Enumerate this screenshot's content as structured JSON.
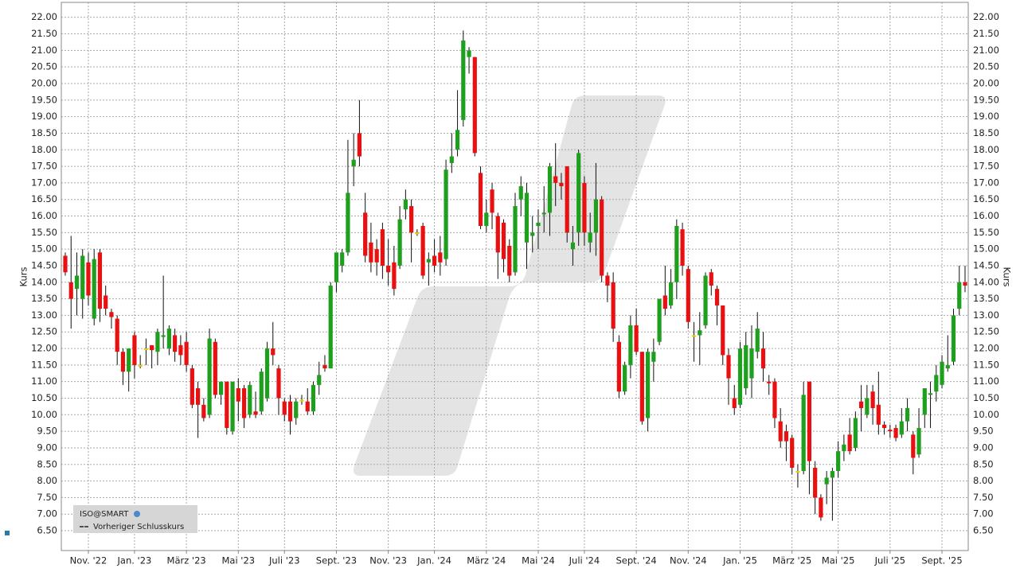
{
  "chart_data": {
    "type": "candlestick",
    "y_label": "Kurs",
    "instrument": "ISO@SMART",
    "legend_line": "Vorheriger Schlusskurs",
    "up_color": "#1ea01e",
    "down_color": "#e81010",
    "neutral_color": "#e8d000",
    "grid": true,
    "ylim": [
      5.9,
      22.45
    ],
    "yticks": [
      {
        "value": 6.5,
        "label": "6.50"
      },
      {
        "value": 7,
        "label": "7.00"
      },
      {
        "value": 7.5,
        "label": "7.50"
      },
      {
        "value": 8,
        "label": "8.00"
      },
      {
        "value": 8.5,
        "label": "8.50"
      },
      {
        "value": 9,
        "label": "9.00"
      },
      {
        "value": 9.5,
        "label": "9.50"
      },
      {
        "value": 10,
        "label": "10.00"
      },
      {
        "value": 10.5,
        "label": "10.50"
      },
      {
        "value": 11,
        "label": "11.00"
      },
      {
        "value": 11.5,
        "label": "11.50"
      },
      {
        "value": 12,
        "label": "12.00"
      },
      {
        "value": 12.5,
        "label": "12.50"
      },
      {
        "value": 13,
        "label": "13.00"
      },
      {
        "value": 13.5,
        "label": "13.50"
      },
      {
        "value": 14,
        "label": "14.00"
      },
      {
        "value": 14.5,
        "label": "14.50"
      },
      {
        "value": 15,
        "label": "15.00"
      },
      {
        "value": 15.5,
        "label": "15.50"
      },
      {
        "value": 16,
        "label": "16.00"
      },
      {
        "value": 16.5,
        "label": "16.50"
      },
      {
        "value": 17,
        "label": "17.00"
      },
      {
        "value": 17.5,
        "label": "17.50"
      },
      {
        "value": 18,
        "label": "18.00"
      },
      {
        "value": 18.5,
        "label": "18.50"
      },
      {
        "value": 19,
        "label": "19.00"
      },
      {
        "value": 19.5,
        "label": "19.50"
      },
      {
        "value": 20,
        "label": "20.00"
      },
      {
        "value": 20.5,
        "label": "20.50"
      },
      {
        "value": 21,
        "label": "21.00"
      },
      {
        "value": 21.5,
        "label": "21.50"
      },
      {
        "value": 22,
        "label": "22.00"
      }
    ],
    "categories": [
      null,
      null,
      null,
      null,
      "Nov. '22",
      null,
      null,
      null,
      null,
      null,
      null,
      null,
      "Jan. '23",
      null,
      null,
      null,
      null,
      null,
      null,
      null,
      null,
      "März '23",
      null,
      null,
      null,
      null,
      null,
      null,
      null,
      null,
      "Mai '23",
      null,
      null,
      null,
      null,
      null,
      null,
      null,
      "Juli '23",
      null,
      null,
      null,
      null,
      null,
      null,
      null,
      null,
      "Sept. '23",
      null,
      null,
      null,
      null,
      null,
      null,
      null,
      null,
      "Nov. '23",
      null,
      null,
      null,
      null,
      null,
      null,
      null,
      "Jan. '24",
      null,
      null,
      null,
      null,
      null,
      null,
      null,
      null,
      "März '24",
      null,
      null,
      null,
      null,
      null,
      null,
      null,
      null,
      "Mai '24",
      null,
      null,
      null,
      null,
      null,
      null,
      null,
      "Juli '24",
      null,
      null,
      null,
      null,
      null,
      null,
      null,
      null,
      "Sept. '24",
      null,
      null,
      null,
      null,
      null,
      null,
      null,
      null,
      "Nov. '24",
      null,
      null,
      null,
      null,
      null,
      null,
      null,
      null,
      "Jan. '25",
      null,
      null,
      null,
      null,
      null,
      null,
      null,
      null,
      "März '25",
      null,
      null,
      null,
      null,
      null,
      null,
      null,
      "Mai '25",
      null,
      null,
      null,
      null,
      null,
      null,
      null,
      null,
      "Juli '25",
      null,
      null,
      null,
      null,
      null,
      null,
      null,
      null,
      "Sept. '25",
      null,
      null,
      null,
      null
    ],
    "open": [
      14.8,
      14.0,
      13.8,
      13.5,
      14.6,
      12.9,
      14.9,
      13.6,
      13.1,
      12.9,
      11.9,
      11.3,
      12.4,
      11.5,
      12.0,
      12.1,
      11.9,
      12.35,
      12.0,
      12.4,
      12.1,
      12.2,
      11.4,
      10.8,
      10.3,
      10.0,
      12.2,
      10.6,
      11.0,
      9.5,
      10.8,
      10.8,
      10.0,
      10.1,
      10.1,
      10.5,
      12.0,
      11.4,
      10.4,
      10.4,
      9.9,
      10.45,
      10.4,
      10.1,
      10.9,
      11.5,
      11.4,
      14.0,
      14.5,
      14.9,
      17.5,
      18.5,
      16.1,
      15.2,
      15.0,
      15.6,
      14.5,
      14.6,
      14.5,
      16.2,
      16.3,
      15.5,
      15.7,
      14.6,
      14.8,
      14.9,
      14.7,
      17.6,
      18.0,
      18.9,
      20.8,
      20.8,
      17.3,
      15.7,
      16.8,
      16.0,
      15.8,
      15.1,
      14.3,
      16.5,
      15.2,
      15.4,
      15.7,
      16.05,
      16.1,
      17.2,
      17.0,
      17.5,
      15.0,
      15.5,
      17.0,
      15.2,
      15.5,
      16.5,
      14.2,
      14.0,
      12.2,
      10.7,
      11.5,
      12.7,
      11.9,
      9.9,
      11.6,
      12.2,
      13.6,
      13.3,
      14.0,
      15.6,
      14.4,
      12.4,
      12.4,
      12.7,
      14.3,
      13.8,
      13.3,
      11.8,
      10.5,
      10.3,
      10.8,
      11.1,
      11.9,
      12.0,
      11.0,
      11.0,
      9.8,
      9.5,
      9.3,
      8.3,
      8.3,
      11.0,
      8.4,
      7.5,
      7.9,
      8.1,
      8.3,
      8.9,
      9.4,
      9.0,
      10.4,
      10.0,
      10.7,
      10.3,
      9.7,
      9.55,
      9.6,
      9.4,
      9.8,
      9.4,
      8.8,
      10.0,
      10.6,
      10.7,
      10.9,
      11.4,
      11.6,
      13.2,
      14.0
    ],
    "high": [
      14.9,
      15.4,
      14.9,
      15.0,
      14.9,
      15.0,
      15.0,
      13.9,
      13.2,
      13.0,
      12.0,
      12.0,
      12.5,
      11.8,
      12.3,
      12.1,
      12.6,
      14.2,
      12.7,
      12.6,
      12.4,
      12.5,
      11.5,
      11.0,
      10.5,
      12.6,
      12.3,
      11.0,
      11.0,
      11.0,
      11.1,
      10.9,
      11.0,
      10.7,
      11.4,
      12.2,
      12.8,
      11.5,
      10.5,
      10.6,
      10.5,
      10.6,
      10.8,
      11.0,
      11.6,
      11.8,
      14.0,
      14.9,
      15.0,
      18.3,
      18.5,
      19.5,
      16.7,
      15.8,
      15.3,
      15.8,
      15.3,
      15.1,
      16.3,
      16.8,
      16.5,
      15.6,
      15.8,
      14.9,
      15.3,
      15.4,
      17.7,
      18.5,
      19.8,
      21.6,
      21.1,
      20.8,
      17.5,
      16.5,
      17.0,
      16.1,
      15.9,
      15.3,
      16.7,
      17.2,
      17.0,
      16.0,
      16.2,
      16.9,
      17.6,
      18.2,
      17.3,
      17.5,
      15.7,
      18.0,
      17.2,
      16.1,
      17.6,
      16.6,
      14.3,
      14.3,
      12.4,
      11.6,
      13.0,
      13.2,
      11.9,
      12.0,
      12.3,
      13.5,
      14.5,
      14.4,
      15.9,
      15.8,
      14.5,
      12.8,
      13.1,
      14.3,
      14.4,
      13.9,
      13.3,
      12.0,
      10.9,
      12.2,
      12.5,
      12.7,
      13.1,
      12.5,
      11.2,
      11.1,
      10.2,
      9.7,
      9.4,
      8.5,
      11.0,
      11.0,
      8.6,
      7.6,
      8.3,
      8.4,
      9.2,
      9.4,
      9.9,
      10.1,
      10.9,
      10.9,
      10.9,
      11.3,
      9.8,
      9.7,
      9.7,
      10.2,
      10.5,
      9.5,
      10.2,
      10.8,
      11.0,
      11.5,
      11.8,
      12.4,
      13.2,
      14.5,
      14.5
    ],
    "low": [
      14.2,
      12.6,
      13.0,
      12.9,
      13.3,
      12.7,
      12.8,
      13.0,
      12.6,
      11.5,
      10.9,
      10.7,
      11.1,
      11.4,
      11.5,
      11.4,
      11.5,
      12.0,
      11.8,
      11.6,
      11.5,
      11.3,
      10.2,
      9.3,
      9.8,
      9.9,
      10.5,
      10.3,
      9.4,
      9.4,
      9.8,
      9.6,
      9.9,
      9.9,
      10.0,
      10.4,
      11.5,
      10.0,
      9.8,
      9.4,
      9.7,
      10.3,
      10.0,
      10.0,
      10.6,
      11.3,
      11.4,
      13.7,
      14.3,
      14.8,
      16.9,
      17.5,
      14.6,
      14.3,
      14.2,
      14.1,
      13.9,
      13.6,
      14.4,
      15.9,
      14.6,
      15.4,
      14.1,
      13.9,
      14.3,
      14.2,
      14.5,
      17.3,
      17.8,
      18.7,
      20.3,
      17.8,
      15.6,
      15.5,
      15.6,
      14.1,
      14.3,
      14.0,
      14.2,
      16.0,
      14.4,
      14.9,
      15.0,
      15.5,
      15.4,
      16.3,
      16.5,
      15.2,
      14.5,
      15.1,
      15.1,
      14.9,
      14.8,
      14.0,
      13.4,
      12.2,
      10.5,
      10.6,
      11.1,
      11.8,
      9.7,
      9.5,
      11.0,
      12.1,
      13.0,
      13.2,
      13.5,
      14.2,
      12.6,
      11.6,
      11.5,
      12.6,
      13.6,
      12.7,
      11.5,
      10.3,
      10.0,
      10.2,
      10.6,
      10.5,
      11.7,
      11.0,
      10.6,
      9.6,
      9.0,
      8.6,
      8.2,
      7.8,
      8.2,
      7.6,
      7.0,
      6.8,
      7.3,
      6.8,
      8.1,
      8.6,
      8.8,
      8.9,
      9.5,
      9.9,
      9.7,
      9.4,
      9.4,
      9.3,
      9.2,
      9.3,
      9.5,
      8.2,
      8.7,
      9.6,
      9.6,
      10.4,
      10.8,
      11.3,
      11.5,
      13.0,
      13.7
    ],
    "close": [
      14.3,
      13.5,
      14.2,
      14.8,
      13.6,
      14.7,
      13.2,
      13.2,
      12.95,
      11.9,
      11.3,
      12.0,
      11.5,
      11.5,
      12.0,
      11.95,
      12.5,
      12.4,
      12.6,
      11.9,
      11.8,
      11.5,
      10.3,
      10.3,
      9.9,
      12.3,
      10.6,
      11.0,
      9.6,
      11.0,
      10.4,
      9.9,
      10.9,
      10.0,
      11.3,
      12.0,
      11.8,
      10.5,
      10.0,
      9.8,
      10.4,
      10.45,
      10.1,
      10.9,
      11.2,
      11.4,
      13.9,
      14.9,
      14.9,
      16.7,
      17.7,
      17.8,
      14.8,
      14.6,
      14.6,
      14.5,
      14.3,
      13.8,
      15.9,
      16.5,
      15.5,
      15.5,
      14.2,
      14.7,
      14.5,
      14.6,
      17.4,
      17.8,
      18.6,
      21.3,
      21.0,
      17.9,
      15.7,
      16.1,
      16.1,
      14.9,
      14.7,
      14.2,
      16.3,
      16.9,
      16.7,
      15.5,
      15.8,
      16.1,
      17.5,
      17.0,
      16.9,
      15.5,
      15.2,
      17.9,
      15.5,
      15.5,
      16.5,
      14.2,
      13.9,
      12.6,
      10.7,
      11.5,
      12.7,
      11.9,
      9.8,
      11.9,
      11.9,
      13.5,
      13.2,
      14.0,
      15.7,
      14.5,
      12.8,
      12.4,
      12.55,
      14.2,
      13.9,
      13.3,
      11.8,
      11.1,
      10.2,
      12.0,
      12.1,
      12.0,
      12.6,
      11.4,
      10.95,
      9.9,
      9.2,
      9.2,
      8.4,
      8.3,
      10.6,
      8.6,
      7.5,
      6.9,
      8.1,
      8.3,
      8.9,
      9.1,
      8.9,
      9.9,
      10.2,
      10.5,
      10.2,
      9.7,
      9.6,
      9.5,
      9.3,
      9.8,
      10.2,
      8.7,
      9.6,
      10.8,
      10.65,
      11.2,
      11.6,
      11.5,
      13.0,
      14.0,
      13.9
    ]
  }
}
